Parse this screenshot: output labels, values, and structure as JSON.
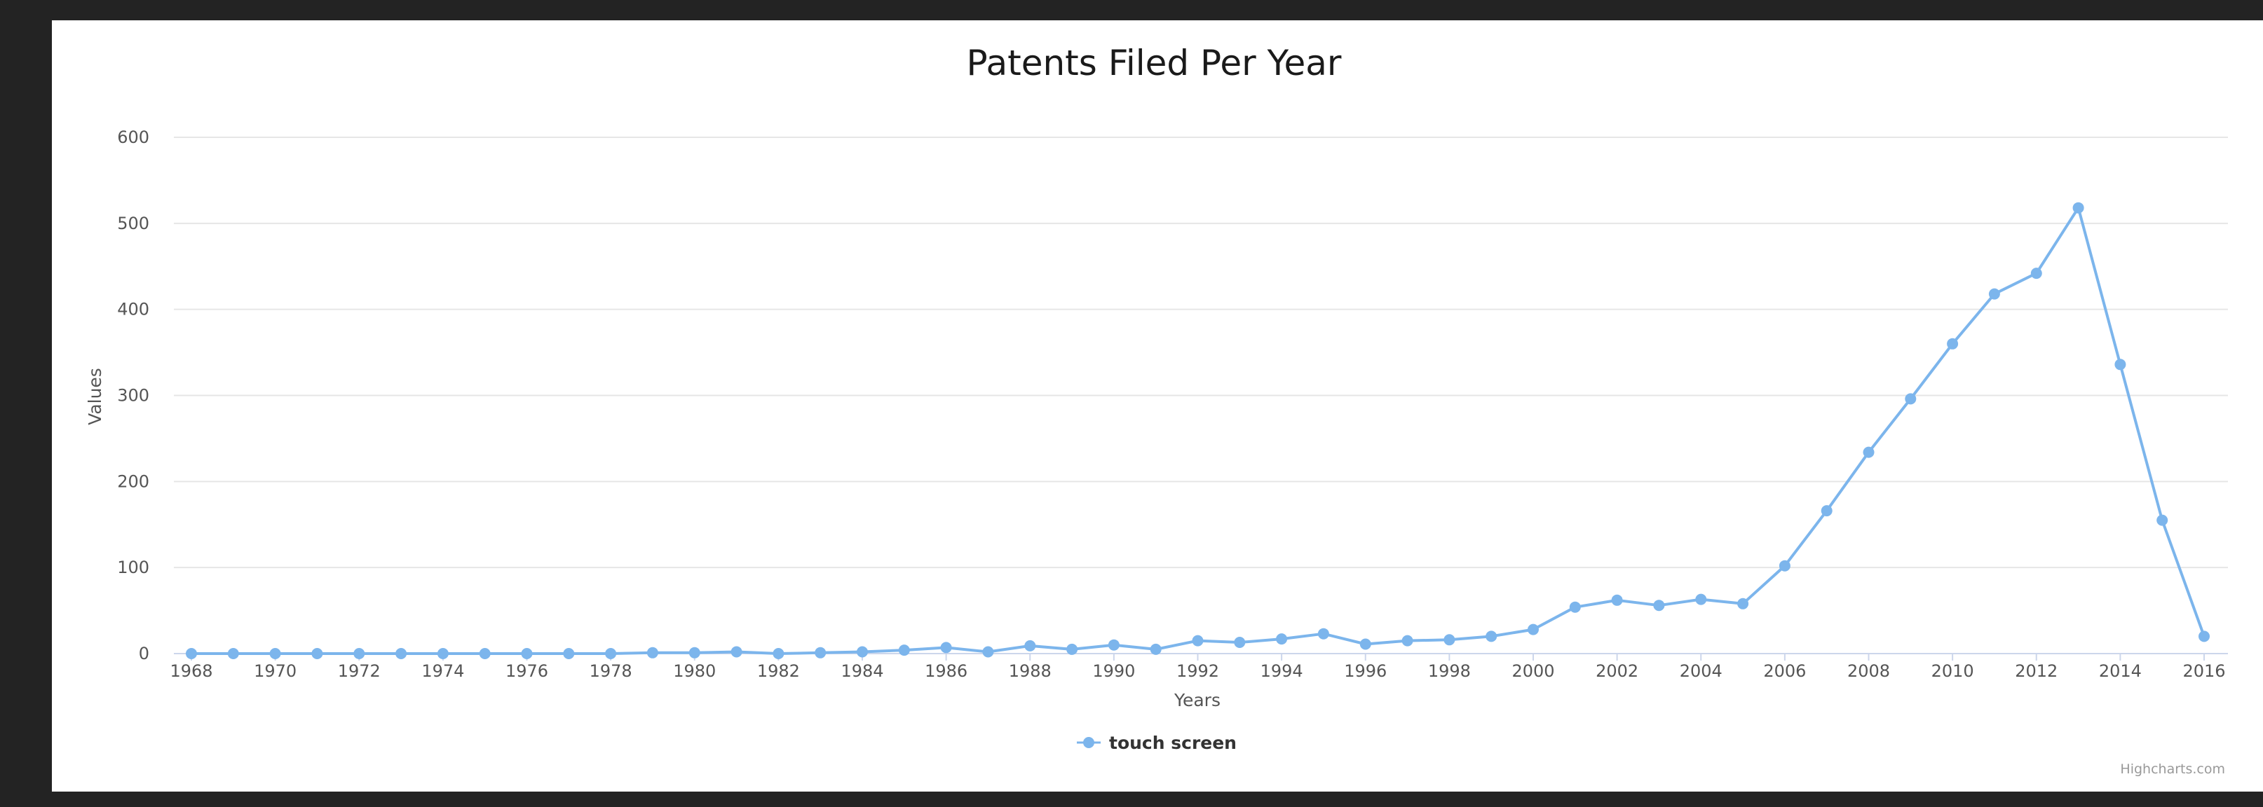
{
  "chart_data": {
    "type": "line",
    "title": "Patents Filed Per Year",
    "xlabel": "Years",
    "ylabel": "Values",
    "ylim": [
      0,
      600
    ],
    "yticks": [
      0,
      100,
      200,
      300,
      400,
      500,
      600
    ],
    "xlim": [
      1968,
      2016
    ],
    "xticks": [
      1968,
      1970,
      1972,
      1974,
      1976,
      1978,
      1980,
      1982,
      1984,
      1986,
      1988,
      1990,
      1992,
      1994,
      1996,
      1998,
      2000,
      2002,
      2004,
      2006,
      2008,
      2010,
      2012,
      2014,
      2016
    ],
    "grid": true,
    "legend_position": "bottom-center",
    "series": [
      {
        "name": "touch screen",
        "color": "#7cb5ec",
        "x": [
          1968,
          1969,
          1970,
          1971,
          1972,
          1973,
          1974,
          1975,
          1976,
          1977,
          1978,
          1979,
          1980,
          1981,
          1982,
          1983,
          1984,
          1985,
          1986,
          1987,
          1988,
          1989,
          1990,
          1991,
          1992,
          1993,
          1994,
          1995,
          1996,
          1997,
          1998,
          1999,
          2000,
          2001,
          2002,
          2003,
          2004,
          2005,
          2006,
          2007,
          2008,
          2009,
          2010,
          2011,
          2012,
          2013,
          2014,
          2015,
          2016
        ],
        "values": [
          0,
          0,
          0,
          0,
          0,
          0,
          0,
          0,
          0,
          0,
          0,
          1,
          1,
          2,
          0,
          1,
          2,
          4,
          7,
          2,
          9,
          5,
          10,
          5,
          15,
          13,
          17,
          23,
          11,
          15,
          16,
          20,
          28,
          54,
          62,
          56,
          63,
          58,
          102,
          166,
          234,
          296,
          360,
          418,
          442,
          518,
          336,
          155,
          20
        ]
      }
    ],
    "credits": "Highcharts.com"
  }
}
